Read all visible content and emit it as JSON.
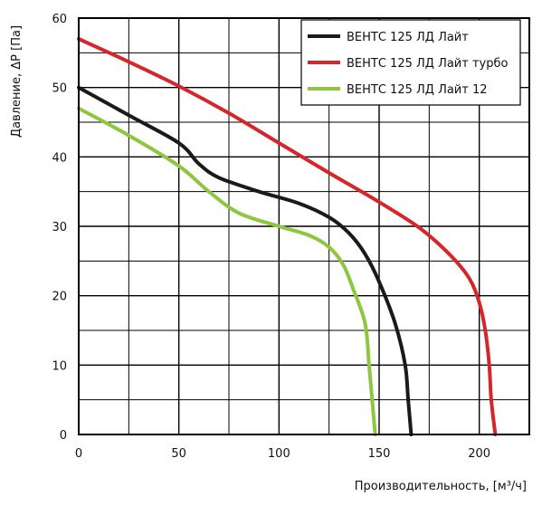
{
  "chart_data": {
    "type": "line",
    "title": "",
    "xlabel": "Производительность, [м³/ч]",
    "ylabel": "Давление, ΔP [Па]",
    "xlim": [
      0,
      225
    ],
    "ylim": [
      0,
      60
    ],
    "x_ticks": [
      0,
      50,
      100,
      150,
      200
    ],
    "y_ticks": [
      0,
      10,
      20,
      30,
      40,
      50,
      60
    ],
    "grid": true,
    "legend_position": "top-right",
    "series": [
      {
        "name": "ВЕНТС 125 ЛД Лайт",
        "color": "#1a1a1a",
        "points": [
          [
            0,
            50
          ],
          [
            25,
            46
          ],
          [
            50,
            42
          ],
          [
            60,
            39
          ],
          [
            70,
            37
          ],
          [
            90,
            35
          ],
          [
            110,
            33.3
          ],
          [
            125,
            31.3
          ],
          [
            135,
            29
          ],
          [
            143,
            26
          ],
          [
            150,
            22
          ],
          [
            158,
            16
          ],
          [
            163,
            10
          ],
          [
            164.5,
            5
          ],
          [
            166,
            0
          ]
        ]
      },
      {
        "name": "ВЕНТС 125 ЛД Лайт турбо",
        "color": "#d7262b",
        "points": [
          [
            0,
            57
          ],
          [
            25,
            53.7
          ],
          [
            50,
            50.2
          ],
          [
            75,
            46.3
          ],
          [
            100,
            42
          ],
          [
            125,
            37.7
          ],
          [
            150,
            33.5
          ],
          [
            170,
            29.8
          ],
          [
            185,
            26
          ],
          [
            195,
            22.5
          ],
          [
            200,
            19
          ],
          [
            203,
            15
          ],
          [
            205,
            10
          ],
          [
            206,
            5
          ],
          [
            208,
            0
          ]
        ]
      },
      {
        "name": "ВЕНТС 125 ЛД Лайт 12",
        "color": "#8dc63f",
        "points": [
          [
            0,
            47
          ],
          [
            25,
            43.1
          ],
          [
            50,
            38.7
          ],
          [
            65,
            35
          ],
          [
            80,
            31.9
          ],
          [
            100,
            30
          ],
          [
            115,
            28.7
          ],
          [
            125,
            27
          ],
          [
            132,
            24.5
          ],
          [
            137,
            21
          ],
          [
            143,
            16
          ],
          [
            145,
            10
          ],
          [
            146.5,
            5
          ],
          [
            148,
            0
          ]
        ]
      }
    ]
  }
}
